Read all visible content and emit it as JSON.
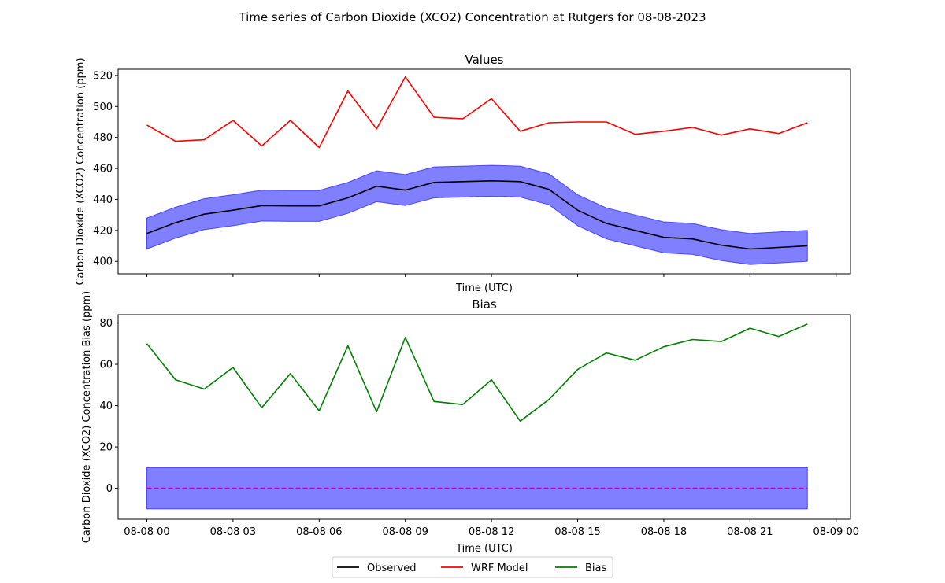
{
  "figure_title": "Time series of Carbon Dioxide (XCO2) Concentration at Rutgers for 08-08-2023",
  "legend": {
    "placement": "bottom-center",
    "entries": [
      {
        "label": "Observed",
        "color": "#000000"
      },
      {
        "label": "WRF Model",
        "color": "#ff0000"
      },
      {
        "label": "Bias",
        "color": "#008000"
      }
    ]
  },
  "colors": {
    "band": "#0000ff",
    "zero_line": "#c000c0"
  },
  "chart_data": [
    {
      "type": "line",
      "title": "Values",
      "xlabel": "Time (UTC)",
      "ylabel": "Carbon Dioxide (XCO2) Concentration (ppm)",
      "x_hours": [
        0,
        1,
        2,
        3,
        4,
        5,
        6,
        7,
        8,
        9,
        10,
        11,
        12,
        13,
        14,
        15,
        16,
        17,
        18,
        19,
        20,
        21,
        22,
        23
      ],
      "xlim": [
        -1.0,
        24.5
      ],
      "ylim": [
        392,
        524
      ],
      "yticks": [
        400,
        420,
        440,
        460,
        480,
        500,
        520
      ],
      "xticks": [
        0,
        3,
        6,
        9,
        12,
        15,
        18,
        21,
        24
      ],
      "xtick_labels": [],
      "series": [
        {
          "name": "Observed",
          "color": "#000000",
          "values": [
            418,
            425,
            430.5,
            433,
            436,
            435.8,
            435.8,
            441,
            448.5,
            446,
            451,
            451.5,
            452,
            451.5,
            446.5,
            433,
            424.5,
            420,
            415.5,
            414.5,
            410.5,
            408,
            409,
            410
          ],
          "band": 10
        },
        {
          "name": "WRF Model",
          "color": "#ff0000",
          "values": [
            488,
            477.5,
            478.5,
            491,
            474.5,
            491,
            473.5,
            510,
            485.5,
            519,
            493,
            492,
            505,
            484,
            489.5,
            490,
            490,
            482,
            484,
            486.5,
            481.5,
            485.5,
            482.5,
            489.5
          ]
        }
      ]
    },
    {
      "type": "line",
      "title": "Bias",
      "xlabel": "Time (UTC)",
      "ylabel": "Carbon Dioxide (XCO2) Concentration Bias (ppm)",
      "x_hours": [
        0,
        1,
        2,
        3,
        4,
        5,
        6,
        7,
        8,
        9,
        10,
        11,
        12,
        13,
        14,
        15,
        16,
        17,
        18,
        19,
        20,
        21,
        22,
        23
      ],
      "xlim": [
        -1.0,
        24.5
      ],
      "ylim": [
        -15,
        84
      ],
      "yticks": [
        0,
        20,
        40,
        60,
        80
      ],
      "xticks": [
        0,
        3,
        6,
        9,
        12,
        15,
        18,
        21,
        24
      ],
      "xtick_labels": [
        "08-08 00",
        "08-08 03",
        "08-08 06",
        "08-08 09",
        "08-08 12",
        "08-08 15",
        "08-08 18",
        "08-08 21",
        "08-09 00"
      ],
      "series": [
        {
          "name": "Bias",
          "color": "#008000",
          "values": [
            70,
            52.5,
            48,
            58.5,
            39,
            55.5,
            37.5,
            69,
            37,
            73,
            42,
            40.5,
            52.5,
            32.5,
            43,
            57.5,
            65.5,
            62,
            68.5,
            72,
            71,
            77.5,
            73.5,
            79.5
          ]
        },
        {
          "name": "Zero",
          "color": "#c000c0",
          "dashed": true,
          "values": [
            0,
            0
          ]
        }
      ],
      "zero_band": {
        "low": -10,
        "high": 10
      }
    }
  ]
}
